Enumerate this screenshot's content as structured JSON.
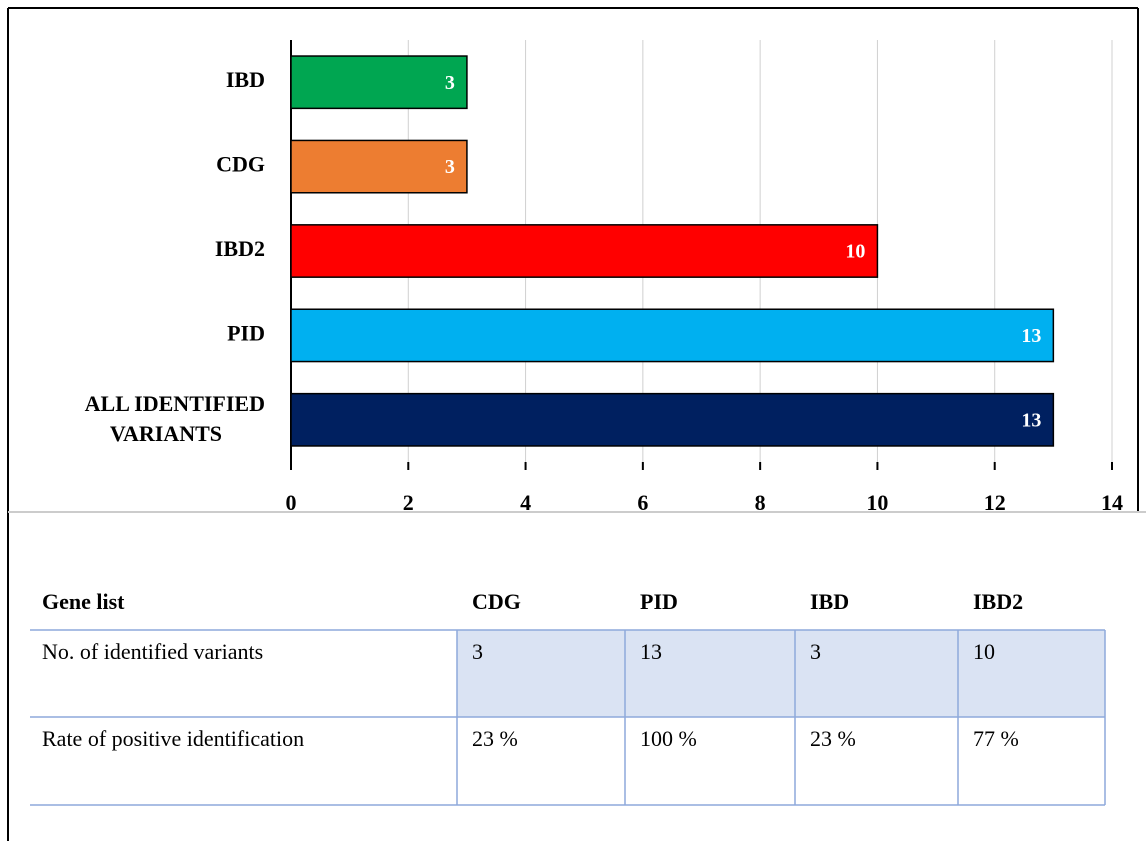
{
  "chart_data": {
    "type": "bar",
    "orientation": "horizontal",
    "categories": [
      "IBD",
      "CDG",
      "IBD2",
      "PID",
      "ALL IDENTIFIED VARIANTS"
    ],
    "values": [
      3,
      3,
      10,
      13,
      13
    ],
    "colors": [
      "#00a651",
      "#ed7d31",
      "#ff0000",
      "#00b0f0",
      "#002060"
    ],
    "xlim": [
      0,
      14
    ],
    "xticks": [
      0,
      2,
      4,
      6,
      8,
      10,
      12,
      14
    ],
    "grid": true
  },
  "table": {
    "header": [
      "Gene list",
      "CDG",
      "PID",
      "IBD",
      "IBD2"
    ],
    "rows": [
      [
        "No. of identified variants",
        "3",
        "13",
        "3",
        "10"
      ],
      [
        "Rate of positive identification",
        "23 %",
        "100 %",
        "23 %",
        "77 %"
      ]
    ]
  }
}
